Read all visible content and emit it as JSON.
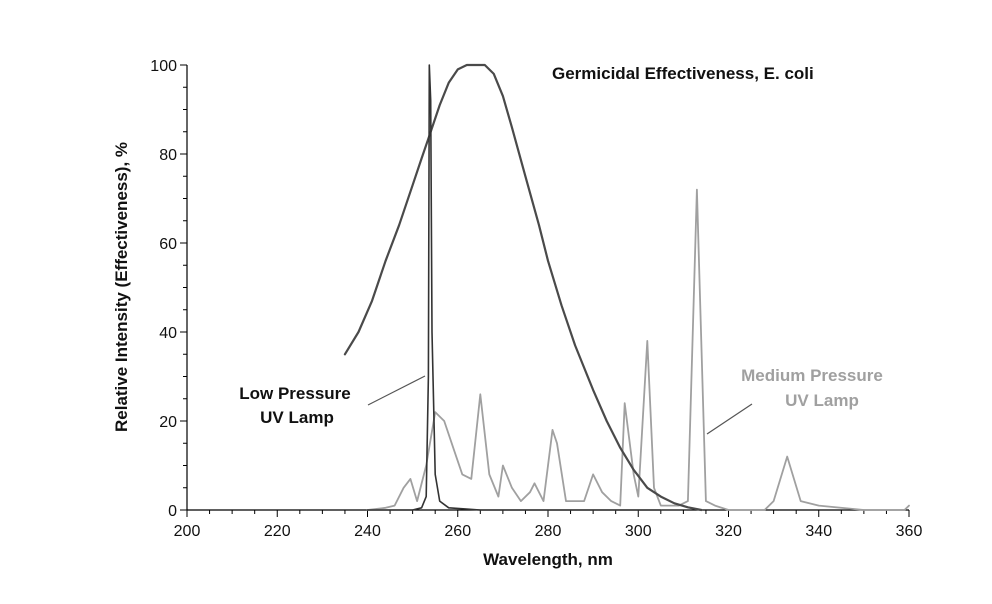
{
  "chart_data": {
    "type": "line",
    "title": "",
    "xlabel": "Wavelength, nm",
    "ylabel": "Relative Intensity (Effectiveness), %",
    "xlim": [
      200,
      360
    ],
    "ylim": [
      0,
      100
    ],
    "xticks": [
      200,
      220,
      240,
      260,
      280,
      300,
      320,
      340,
      360
    ],
    "yticks": [
      0,
      20,
      40,
      60,
      80,
      100
    ],
    "grid": false,
    "legend": "none",
    "annotations": {
      "germicidal": "Germicidal Effectiveness, E. coli",
      "low_line1": "Low Pressure",
      "low_line2": "UV Lamp",
      "medium_line1": "Medium Pressure",
      "medium_line2": "UV Lamp"
    },
    "series": [
      {
        "id": "germicidal",
        "color": "#4a4a4a",
        "x": [
          235,
          238,
          241,
          244,
          247,
          250,
          252,
          254,
          256,
          258,
          260,
          262,
          264,
          266,
          268,
          270,
          272,
          275,
          278,
          280,
          283,
          286,
          290,
          293,
          296,
          299,
          302,
          305,
          308,
          311,
          314
        ],
        "y": [
          35,
          40,
          47,
          56,
          64,
          73,
          79,
          85,
          91,
          96,
          99,
          100,
          100,
          100,
          98,
          93,
          86,
          75,
          64,
          56,
          46,
          37,
          27,
          20,
          14,
          9,
          5,
          3,
          1.5,
          0.6,
          0
        ]
      },
      {
        "id": "low-pressure",
        "color": "#333333",
        "x": [
          240,
          250,
          252,
          253,
          253.5,
          253.7,
          254,
          254.3,
          255,
          256,
          258,
          265,
          280,
          300,
          305
        ],
        "y": [
          0,
          0,
          0.5,
          3,
          30,
          100,
          92,
          40,
          8,
          2,
          0.5,
          0,
          0,
          0,
          0
        ]
      },
      {
        "id": "medium-pressure",
        "color": "#a0a0a0",
        "x": [
          240,
          244,
          246,
          248,
          249.5,
          251,
          253,
          255,
          257,
          259,
          261,
          263,
          265,
          267,
          269,
          270,
          272,
          274,
          276,
          277,
          279,
          281,
          282,
          284,
          288,
          290,
          292,
          294,
          296,
          297,
          299,
          300,
          302,
          303.5,
          305,
          307,
          309,
          311,
          313,
          315,
          317,
          320,
          322,
          325,
          328,
          330,
          333,
          336,
          340,
          350,
          359,
          360
        ],
        "y": [
          0,
          0.5,
          1,
          5,
          7,
          2,
          10,
          22,
          20,
          14,
          8,
          7,
          26,
          8,
          3,
          10,
          5,
          2,
          4,
          6,
          2,
          18,
          15,
          2,
          2,
          8,
          4,
          2,
          1,
          24,
          8,
          3,
          38,
          5,
          1,
          1,
          1,
          2,
          72,
          2,
          1,
          0,
          0,
          0,
          0,
          2,
          12,
          2,
          1,
          0,
          0,
          1
        ]
      }
    ]
  }
}
